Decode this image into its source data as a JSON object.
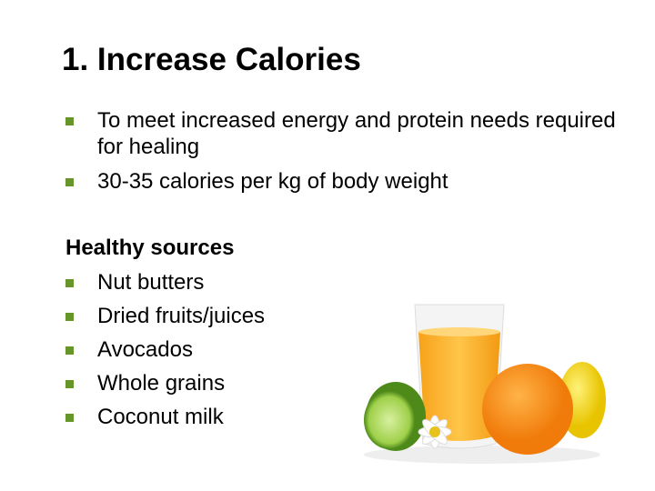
{
  "title": "1. Increase Calories",
  "bullets": [
    "To meet increased energy and protein needs required for healing",
    "30-35 calories per kg of body weight"
  ],
  "sources": {
    "heading": "Healthy sources",
    "items": [
      "Nut butters",
      "Dried fruits/juices",
      "Avocados",
      "Whole grains",
      "Coconut milk"
    ]
  }
}
